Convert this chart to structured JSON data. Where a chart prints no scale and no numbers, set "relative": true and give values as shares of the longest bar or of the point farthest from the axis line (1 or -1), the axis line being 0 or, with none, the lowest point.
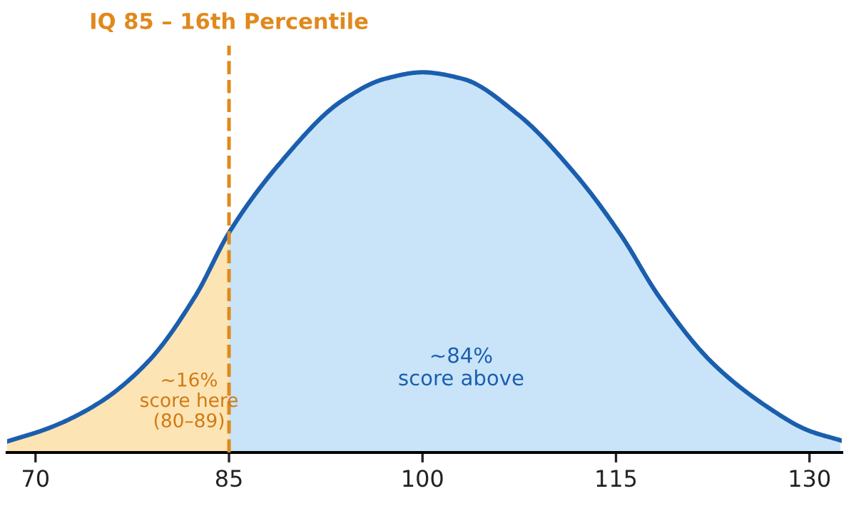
{
  "chart_data": {
    "type": "area",
    "relative": true,
    "xlim": [
      67.8,
      132.5
    ],
    "xticks": [
      70,
      85,
      100,
      115,
      130
    ],
    "series": [
      {
        "color": "#fde4b4",
        "x": [
          67.8,
          71.1,
          74.9,
          78.7,
          82.4,
          85
        ],
        "values": [
          0.029,
          0.065,
          0.13,
          0.238,
          0.412,
          0.578
        ]
      },
      {
        "color": "#c9e4f9",
        "x": [
          85,
          88.9,
          93.75,
          97.1,
          100,
          103.1,
          107.4,
          111.9,
          115.4,
          118.3,
          122.4,
          126.6,
          129.9,
          132.4
        ],
        "values": [
          0.578,
          0.759,
          0.925,
          0.983,
          1,
          0.983,
          0.889,
          0.73,
          0.571,
          0.412,
          0.238,
          0.123,
          0.058,
          0.032
        ]
      },
      {
        "type": "line",
        "color": "#1b5eae",
        "x": [
          67.8,
          71.1,
          74.9,
          78.7,
          82.4,
          85,
          88.9,
          93.75,
          97.1,
          100,
          103.1,
          107.4,
          111.9,
          115.4,
          118.3,
          122.4,
          126.6,
          129.9,
          132.4
        ],
        "values": [
          0.029,
          0.065,
          0.13,
          0.238,
          0.412,
          0.578,
          0.759,
          0.925,
          0.983,
          1,
          0.983,
          0.889,
          0.73,
          0.571,
          0.412,
          0.238,
          0.123,
          0.058,
          0.032
        ]
      }
    ],
    "ref_lines": [
      {
        "axis": "x",
        "value": 85,
        "label": "IQ 85 – 16th Percentile",
        "color": "#e0891c",
        "line_style": "dashed"
      }
    ],
    "annotations": [
      "~16%\nscore here\n(80–89)",
      "~84%\nscore above"
    ],
    "grid": false,
    "legend": false
  }
}
